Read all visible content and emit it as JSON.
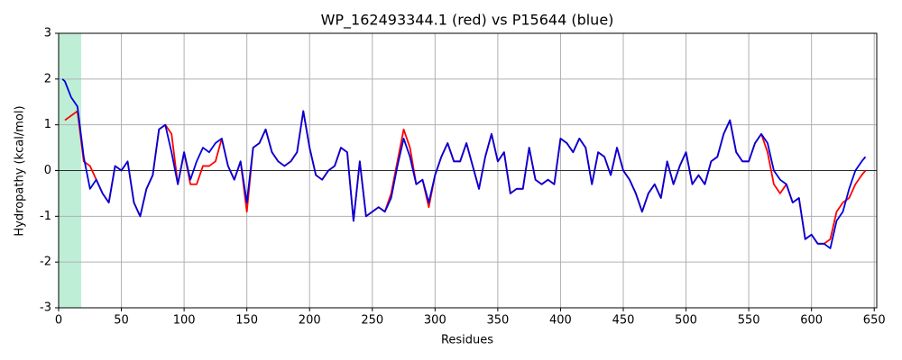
{
  "chart_data": {
    "type": "line",
    "title": "WP_162493344.1 (red) vs P15644 (blue)",
    "x_label": "Residues",
    "y_label": "Hydropathy (kcal/mol)",
    "xlim": [
      0,
      652
    ],
    "ylim": [
      -3,
      3
    ],
    "xticks": [
      0,
      50,
      100,
      150,
      200,
      250,
      300,
      350,
      400,
      450,
      500,
      550,
      600,
      650
    ],
    "yticks": [
      -3,
      -2,
      -1,
      0,
      1,
      2,
      3
    ],
    "grid": true,
    "zero_line": true,
    "shaded_region": {
      "x": [
        0,
        18
      ],
      "color": "#bfeed6"
    },
    "x": [
      3,
      5,
      10,
      15,
      20,
      25,
      30,
      35,
      40,
      45,
      50,
      55,
      60,
      65,
      70,
      75,
      80,
      85,
      90,
      95,
      100,
      105,
      110,
      115,
      120,
      125,
      130,
      135,
      140,
      145,
      150,
      155,
      160,
      165,
      170,
      175,
      180,
      185,
      190,
      195,
      200,
      205,
      210,
      215,
      220,
      225,
      230,
      235,
      240,
      245,
      250,
      255,
      260,
      265,
      270,
      275,
      280,
      285,
      290,
      295,
      300,
      305,
      310,
      315,
      320,
      325,
      330,
      335,
      340,
      345,
      350,
      355,
      360,
      365,
      370,
      375,
      380,
      385,
      390,
      395,
      400,
      405,
      410,
      415,
      420,
      425,
      430,
      435,
      440,
      445,
      450,
      455,
      460,
      465,
      470,
      475,
      480,
      485,
      490,
      495,
      500,
      505,
      510,
      515,
      520,
      525,
      530,
      535,
      540,
      545,
      550,
      555,
      560,
      565,
      570,
      575,
      580,
      585,
      590,
      595,
      600,
      605,
      610,
      615,
      620,
      625,
      630,
      635,
      640,
      643
    ],
    "series": [
      {
        "name": "WP_162493344.1",
        "color": "#ff0000",
        "values": [
          null,
          1.1,
          1.2,
          1.3,
          0.2,
          0.1,
          -0.2,
          -0.5,
          -0.7,
          0.1,
          0.0,
          0.2,
          -0.7,
          -1.0,
          -0.4,
          -0.1,
          0.9,
          1.0,
          0.8,
          -0.3,
          0.4,
          -0.3,
          -0.3,
          0.1,
          0.1,
          0.2,
          0.7,
          0.1,
          -0.2,
          0.2,
          -0.9,
          0.5,
          0.6,
          0.9,
          0.4,
          0.2,
          0.1,
          0.2,
          0.4,
          1.3,
          0.5,
          -0.1,
          -0.2,
          0.0,
          0.1,
          0.5,
          0.4,
          -1.1,
          0.2,
          -1.0,
          -0.9,
          -0.8,
          -0.9,
          -0.5,
          0.2,
          0.9,
          0.5,
          -0.3,
          -0.2,
          -0.8,
          -0.1,
          0.3,
          0.6,
          0.2,
          0.2,
          0.6,
          0.1,
          -0.4,
          0.3,
          0.8,
          0.2,
          0.4,
          -0.5,
          -0.4,
          -0.4,
          0.5,
          -0.2,
          -0.3,
          -0.2,
          -0.3,
          0.7,
          0.6,
          0.4,
          0.7,
          0.5,
          -0.3,
          0.4,
          0.3,
          -0.1,
          0.5,
          0.0,
          -0.2,
          -0.5,
          -0.9,
          -0.5,
          -0.3,
          -0.6,
          0.2,
          -0.3,
          0.1,
          0.4,
          -0.3,
          -0.1,
          -0.3,
          0.2,
          0.3,
          0.8,
          1.1,
          0.4,
          0.2,
          0.2,
          0.6,
          0.8,
          0.4,
          -0.3,
          -0.5,
          -0.3,
          -0.7,
          -0.6,
          -1.5,
          -1.4,
          -1.6,
          -1.6,
          -1.5,
          -0.9,
          -0.7,
          -0.6,
          -0.3,
          -0.1,
          0.0
        ]
      },
      {
        "name": "P15644",
        "color": "#0000dd",
        "values": [
          2.0,
          1.95,
          1.6,
          1.4,
          0.3,
          -0.4,
          -0.2,
          -0.5,
          -0.7,
          0.1,
          0.0,
          0.2,
          -0.7,
          -1.0,
          -0.4,
          -0.1,
          0.9,
          1.0,
          0.4,
          -0.3,
          0.4,
          -0.2,
          0.2,
          0.5,
          0.4,
          0.6,
          0.7,
          0.1,
          -0.2,
          0.2,
          -0.7,
          0.5,
          0.6,
          0.9,
          0.4,
          0.2,
          0.1,
          0.2,
          0.4,
          1.3,
          0.5,
          -0.1,
          -0.2,
          0.0,
          0.1,
          0.5,
          0.4,
          -1.1,
          0.2,
          -1.0,
          -0.9,
          -0.8,
          -0.9,
          -0.6,
          0.1,
          0.7,
          0.3,
          -0.3,
          -0.2,
          -0.7,
          -0.1,
          0.3,
          0.6,
          0.2,
          0.2,
          0.6,
          0.1,
          -0.4,
          0.3,
          0.8,
          0.2,
          0.4,
          -0.5,
          -0.4,
          -0.4,
          0.5,
          -0.2,
          -0.3,
          -0.2,
          -0.3,
          0.7,
          0.6,
          0.4,
          0.7,
          0.5,
          -0.3,
          0.4,
          0.3,
          -0.1,
          0.5,
          0.0,
          -0.2,
          -0.5,
          -0.9,
          -0.5,
          -0.3,
          -0.6,
          0.2,
          -0.3,
          0.1,
          0.4,
          -0.3,
          -0.1,
          -0.3,
          0.2,
          0.3,
          0.8,
          1.1,
          0.4,
          0.2,
          0.2,
          0.6,
          0.8,
          0.6,
          0.0,
          -0.2,
          -0.3,
          -0.7,
          -0.6,
          -1.5,
          -1.4,
          -1.6,
          -1.6,
          -1.7,
          -1.1,
          -0.9,
          -0.4,
          0.0,
          0.2,
          0.3
        ]
      }
    ]
  }
}
